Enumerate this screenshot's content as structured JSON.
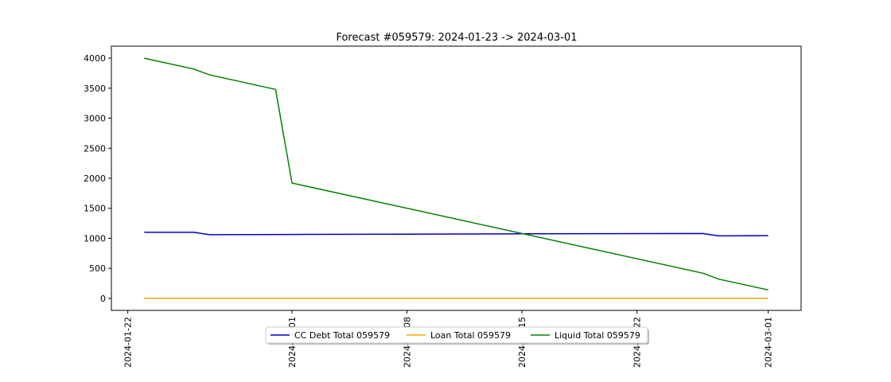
{
  "chart_data": {
    "type": "line",
    "title": "Forecast #059579: 2024-01-23 -> 2024-03-01",
    "xlabel": "",
    "ylabel": "",
    "x_type": "date",
    "xlim": [
      "2024-01-21",
      "2024-03-03"
    ],
    "ylim": [
      -200,
      4200
    ],
    "x_ticks": [
      "2024-01-22",
      "2024-02-01",
      "2024-02-08",
      "2024-02-15",
      "2024-02-22",
      "2024-03-01"
    ],
    "y_ticks": [
      0,
      500,
      1000,
      1500,
      2000,
      2500,
      3000,
      3500,
      4000
    ],
    "grid": false,
    "legend": {
      "placement": "bottom-center",
      "columns": 3
    },
    "series": [
      {
        "name": "CC Debt Total 059579",
        "color": "#0000cc",
        "points": [
          {
            "x": "2024-01-23",
            "y": 1100
          },
          {
            "x": "2024-01-26",
            "y": 1100
          },
          {
            "x": "2024-01-27",
            "y": 1060
          },
          {
            "x": "2024-02-01",
            "y": 1065
          },
          {
            "x": "2024-02-15",
            "y": 1075
          },
          {
            "x": "2024-02-26",
            "y": 1080
          },
          {
            "x": "2024-02-27",
            "y": 1040
          },
          {
            "x": "2024-03-01",
            "y": 1045
          }
        ]
      },
      {
        "name": "Loan Total 059579",
        "color": "#ffa500",
        "points": [
          {
            "x": "2024-01-23",
            "y": 0
          },
          {
            "x": "2024-03-01",
            "y": 0
          }
        ]
      },
      {
        "name": "Liquid Total 059579",
        "color": "#008000",
        "points": [
          {
            "x": "2024-01-23",
            "y": 4000
          },
          {
            "x": "2024-01-26",
            "y": 3820
          },
          {
            "x": "2024-01-27",
            "y": 3720
          },
          {
            "x": "2024-01-31",
            "y": 3480
          },
          {
            "x": "2024-02-01",
            "y": 1920
          },
          {
            "x": "2024-02-26",
            "y": 420
          },
          {
            "x": "2024-02-27",
            "y": 320
          },
          {
            "x": "2024-03-01",
            "y": 140
          }
        ]
      }
    ]
  }
}
